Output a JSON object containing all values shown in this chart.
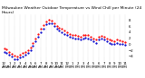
{
  "title": "Milwaukee Weather Outdoor Temperature vs Wind Chill per Minute (24 Hours)",
  "title_fontsize": 3.2,
  "bg_color": "#ffffff",
  "grid_color": "#aaaaaa",
  "x_labels": [
    "12\nAM",
    "1\nAM",
    "2\nAM",
    "3\nAM",
    "4\nAM",
    "5\nAM",
    "6\nAM",
    "7\nAM",
    "8\nAM",
    "9\nAM",
    "10\nAM",
    "11\nAM",
    "12\nPM",
    "1\nPM",
    "2\nPM",
    "3\nPM",
    "4\nPM",
    "5\nPM",
    "6\nPM",
    "7\nPM",
    "8\nPM",
    "9\nPM",
    "10\nPM",
    "11\nPM"
  ],
  "y_ticks": [
    -4,
    -2,
    0,
    2,
    4,
    6,
    8
  ],
  "ylim": [
    -5.5,
    10
  ],
  "temp_x": [
    0,
    0.5,
    1.0,
    1.5,
    2.0,
    2.5,
    3.0,
    3.5,
    4.0,
    4.5,
    5.0,
    5.5,
    6.0,
    6.5,
    7.0,
    7.5,
    8.0,
    8.5,
    9.0,
    9.5,
    10.0,
    10.5,
    11.0,
    11.5,
    12.0,
    12.5,
    13.0,
    13.5,
    14.0,
    14.5,
    15.0,
    15.5,
    16.0,
    16.5,
    17.0,
    17.5,
    18.0,
    18.5,
    19.0,
    19.5,
    20.0,
    20.5,
    21.0,
    21.5,
    22.0,
    22.5,
    23.0
  ],
  "temp_y": [
    -1.5,
    -1.8,
    -2.5,
    -3.2,
    -3.8,
    -4.0,
    -3.5,
    -3.0,
    -2.5,
    -2.0,
    -1.0,
    0.5,
    2.0,
    3.5,
    5.0,
    6.2,
    7.5,
    8.0,
    7.8,
    7.0,
    6.0,
    5.5,
    5.0,
    4.5,
    4.0,
    3.5,
    3.2,
    3.0,
    2.8,
    2.5,
    3.0,
    3.2,
    3.0,
    2.5,
    2.0,
    1.5,
    2.5,
    2.8,
    2.5,
    2.0,
    1.5,
    1.2,
    1.0,
    1.5,
    1.2,
    1.0,
    0.8
  ],
  "chill_x": [
    0,
    0.5,
    1.0,
    1.5,
    2.0,
    2.5,
    3.0,
    3.5,
    4.0,
    4.5,
    5.0,
    5.5,
    6.0,
    6.5,
    7.0,
    7.5,
    8.0,
    8.5,
    9.0,
    9.5,
    10.0,
    10.5,
    11.0,
    11.5,
    12.0,
    12.5,
    13.0,
    13.5,
    14.0,
    14.5,
    15.0,
    15.5,
    16.0,
    16.5,
    17.0,
    17.5,
    18.0,
    18.5,
    19.0,
    19.5,
    20.0,
    20.5,
    21.0,
    21.5,
    22.0,
    22.5,
    23.0
  ],
  "chill_y": [
    -2.5,
    -2.8,
    -3.5,
    -4.2,
    -4.8,
    -5.0,
    -4.5,
    -4.0,
    -3.5,
    -3.0,
    -2.0,
    -0.5,
    1.0,
    2.5,
    4.0,
    5.2,
    6.5,
    7.0,
    6.8,
    6.0,
    5.0,
    4.5,
    4.0,
    3.5,
    3.0,
    2.5,
    2.2,
    2.0,
    1.8,
    1.5,
    2.0,
    2.2,
    2.0,
    1.5,
    1.0,
    0.5,
    1.5,
    1.8,
    1.5,
    1.0,
    0.5,
    0.2,
    0.0,
    0.5,
    0.2,
    0.0,
    -0.2
  ],
  "temp_color": "#ff0000",
  "chill_color": "#0000cc",
  "tick_fontsize": 2.8,
  "marker_size": 1.2
}
